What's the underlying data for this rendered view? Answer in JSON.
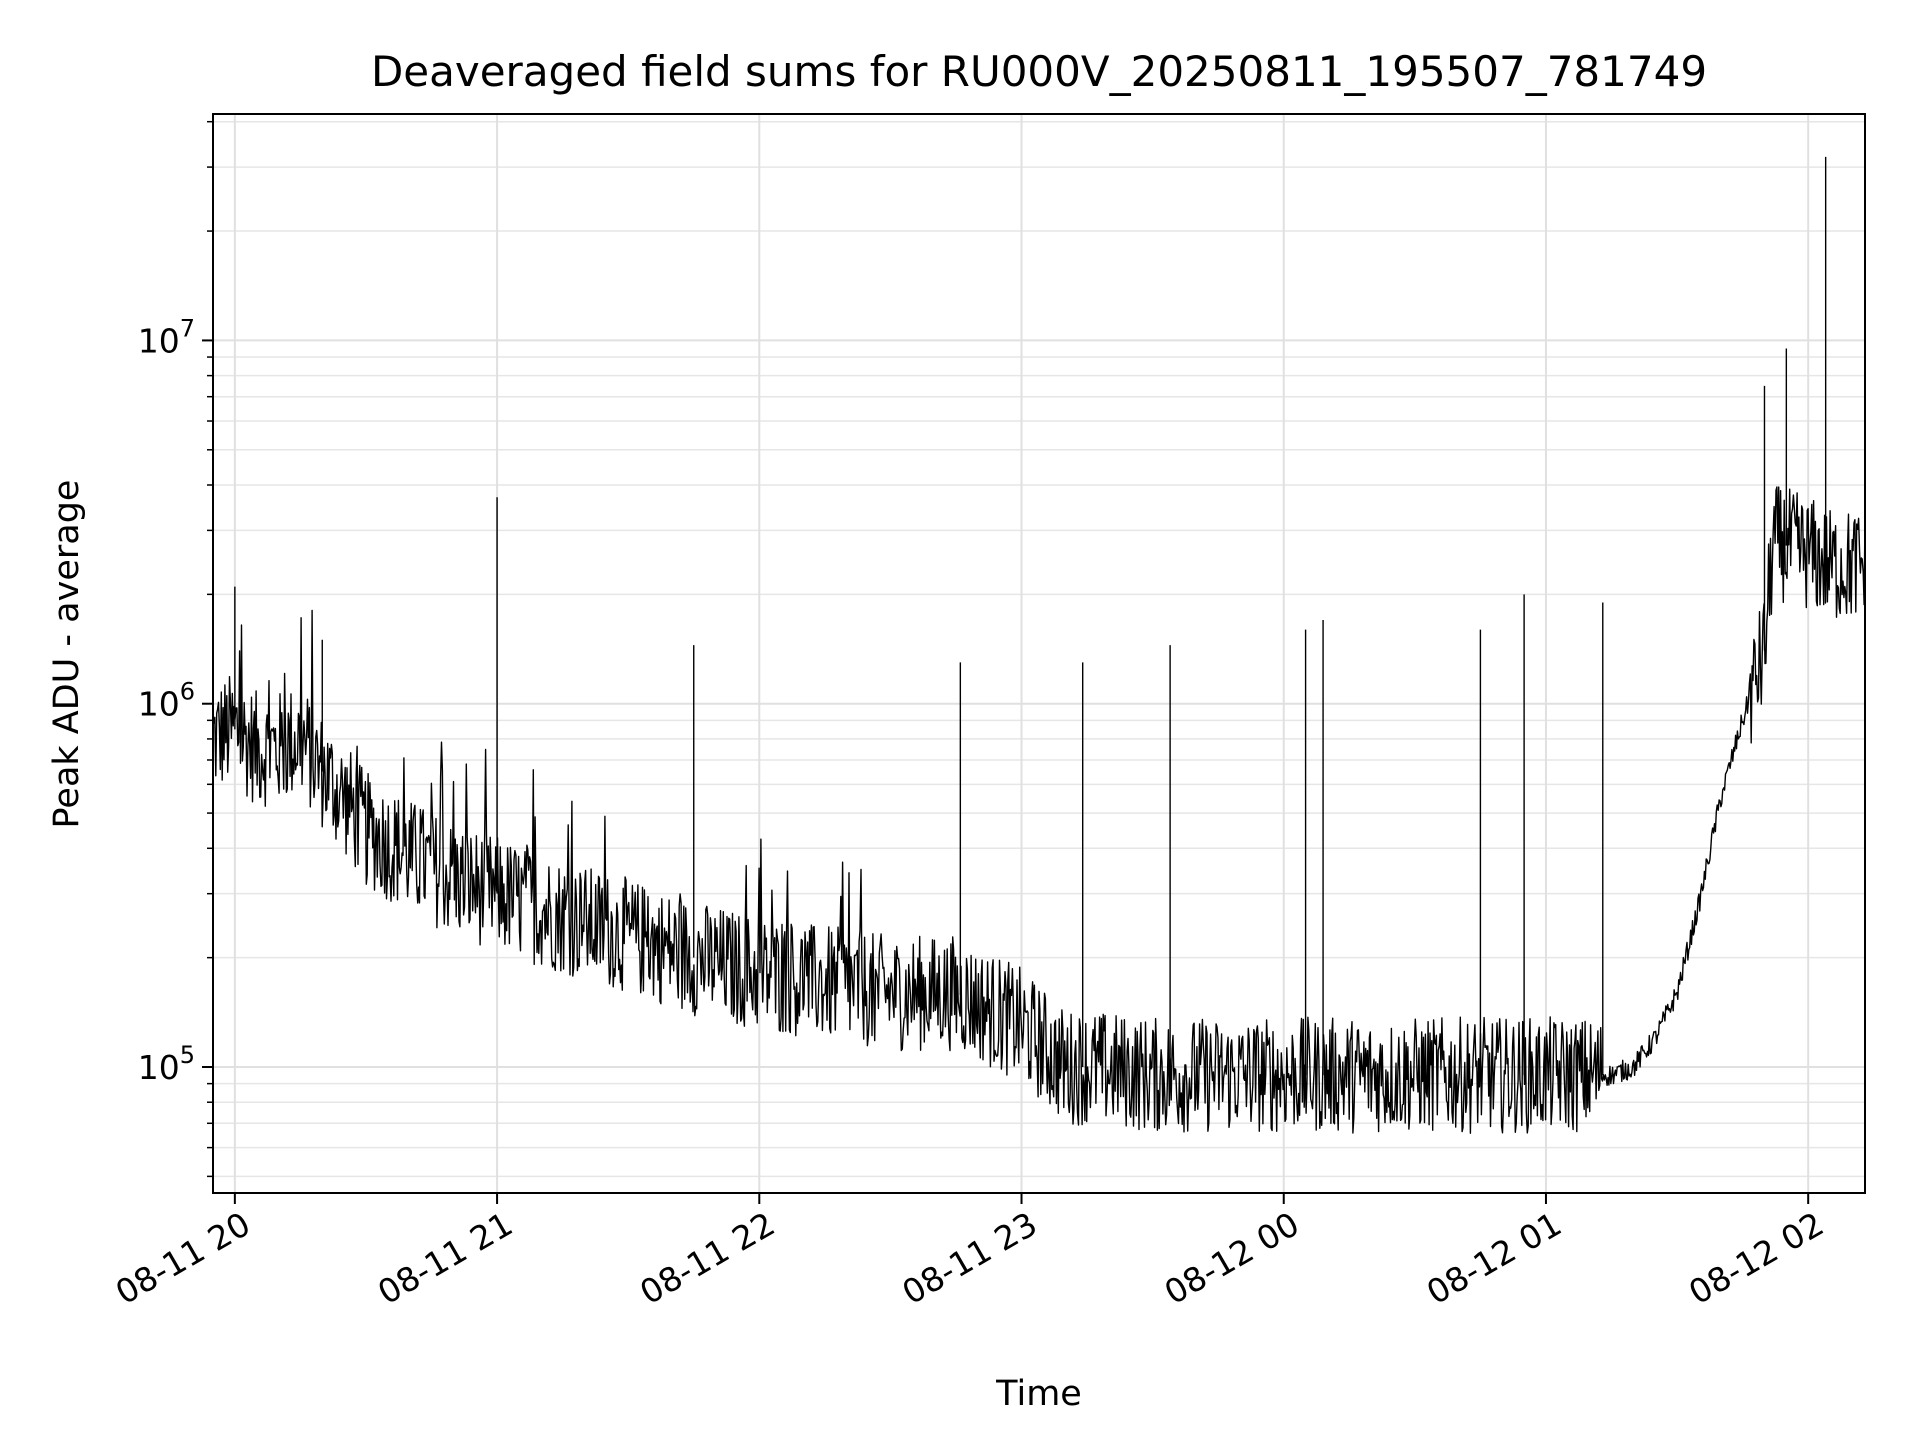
{
  "chart_data": {
    "type": "line",
    "title": "Deaveraged field sums for RU000V_20250811_195507_781749",
    "xlabel": "Time",
    "ylabel": "Peak ADU - average",
    "y_scale": "log",
    "ylim": [
      45000,
      42000000
    ],
    "xlim": [
      "2025-08-11 19:55",
      "2025-08-12 02:13"
    ],
    "grid": true,
    "line_color": "#000000",
    "x_ticks": [
      {
        "value": "2025-08-11 20:00",
        "label": "08-11 20"
      },
      {
        "value": "2025-08-11 21:00",
        "label": "08-11 21"
      },
      {
        "value": "2025-08-11 22:00",
        "label": "08-11 22"
      },
      {
        "value": "2025-08-11 23:00",
        "label": "08-11 23"
      },
      {
        "value": "2025-08-12 00:00",
        "label": "08-12 00"
      },
      {
        "value": "2025-08-12 01:00",
        "label": "08-12 01"
      },
      {
        "value": "2025-08-12 02:00",
        "label": "08-12 02"
      }
    ],
    "y_ticks": [
      {
        "value": 100000,
        "base": "10",
        "exp": "5"
      },
      {
        "value": 1000000,
        "base": "10",
        "exp": "6"
      },
      {
        "value": 10000000,
        "base": "10",
        "exp": "7"
      }
    ],
    "series": [
      {
        "x": [
          "2025-08-11 19:55",
          "2025-08-11 20:00",
          "2025-08-11 20:05",
          "2025-08-11 20:10",
          "2025-08-11 20:15",
          "2025-08-11 20:20",
          "2025-08-11 20:25",
          "2025-08-11 20:30",
          "2025-08-11 20:40",
          "2025-08-11 20:50",
          "2025-08-11 21:00",
          "2025-08-11 21:15",
          "2025-08-11 21:30",
          "2025-08-11 21:45",
          "2025-08-11 22:00",
          "2025-08-11 22:15",
          "2025-08-11 22:30",
          "2025-08-11 22:45",
          "2025-08-11 23:00",
          "2025-08-11 23:10",
          "2025-08-11 23:15",
          "2025-08-11 23:30",
          "2025-08-11 23:45",
          "2025-08-12 00:00",
          "2025-08-12 00:15",
          "2025-08-12 00:30",
          "2025-08-12 00:45",
          "2025-08-12 01:00",
          "2025-08-12 01:15",
          "2025-08-12 01:20",
          "2025-08-12 01:25",
          "2025-08-12 01:30",
          "2025-08-12 01:35",
          "2025-08-12 01:40",
          "2025-08-12 01:45",
          "2025-08-12 01:50",
          "2025-08-12 01:52",
          "2025-08-12 02:00",
          "2025-08-12 02:05",
          "2025-08-12 02:13"
        ],
        "y": [
          800000,
          850000,
          750000,
          750000,
          800000,
          650000,
          550000,
          450000,
          380000,
          330000,
          300000,
          260000,
          230000,
          200000,
          180000,
          170000,
          160000,
          160000,
          130000,
          100000,
          100000,
          95000,
          95000,
          95000,
          95000,
          95000,
          95000,
          95000,
          95000,
          100000,
          120000,
          160000,
          280000,
          550000,
          900000,
          1400000,
          2800000,
          2600000,
          2400000,
          2400000
        ]
      }
    ],
    "spikes": [
      {
        "x": "2025-08-11 20:00",
        "y": 2100000
      },
      {
        "x": "2025-08-11 20:20",
        "y": 1500000
      },
      {
        "x": "2025-08-11 21:00",
        "y": 3700000
      },
      {
        "x": "2025-08-11 21:45",
        "y": 1450000
      },
      {
        "x": "2025-08-11 22:46",
        "y": 1300000
      },
      {
        "x": "2025-08-11 23:14",
        "y": 1300000
      },
      {
        "x": "2025-08-11 23:34",
        "y": 1450000
      },
      {
        "x": "2025-08-12 00:05",
        "y": 1600000
      },
      {
        "x": "2025-08-12 00:09",
        "y": 1700000
      },
      {
        "x": "2025-08-12 00:45",
        "y": 1600000
      },
      {
        "x": "2025-08-12 00:55",
        "y": 2000000
      },
      {
        "x": "2025-08-12 01:13",
        "y": 1900000
      },
      {
        "x": "2025-08-12 01:50",
        "y": 7500000
      },
      {
        "x": "2025-08-12 01:55",
        "y": 9500000
      },
      {
        "x": "2025-08-12 02:04",
        "y": 32000000
      }
    ]
  }
}
